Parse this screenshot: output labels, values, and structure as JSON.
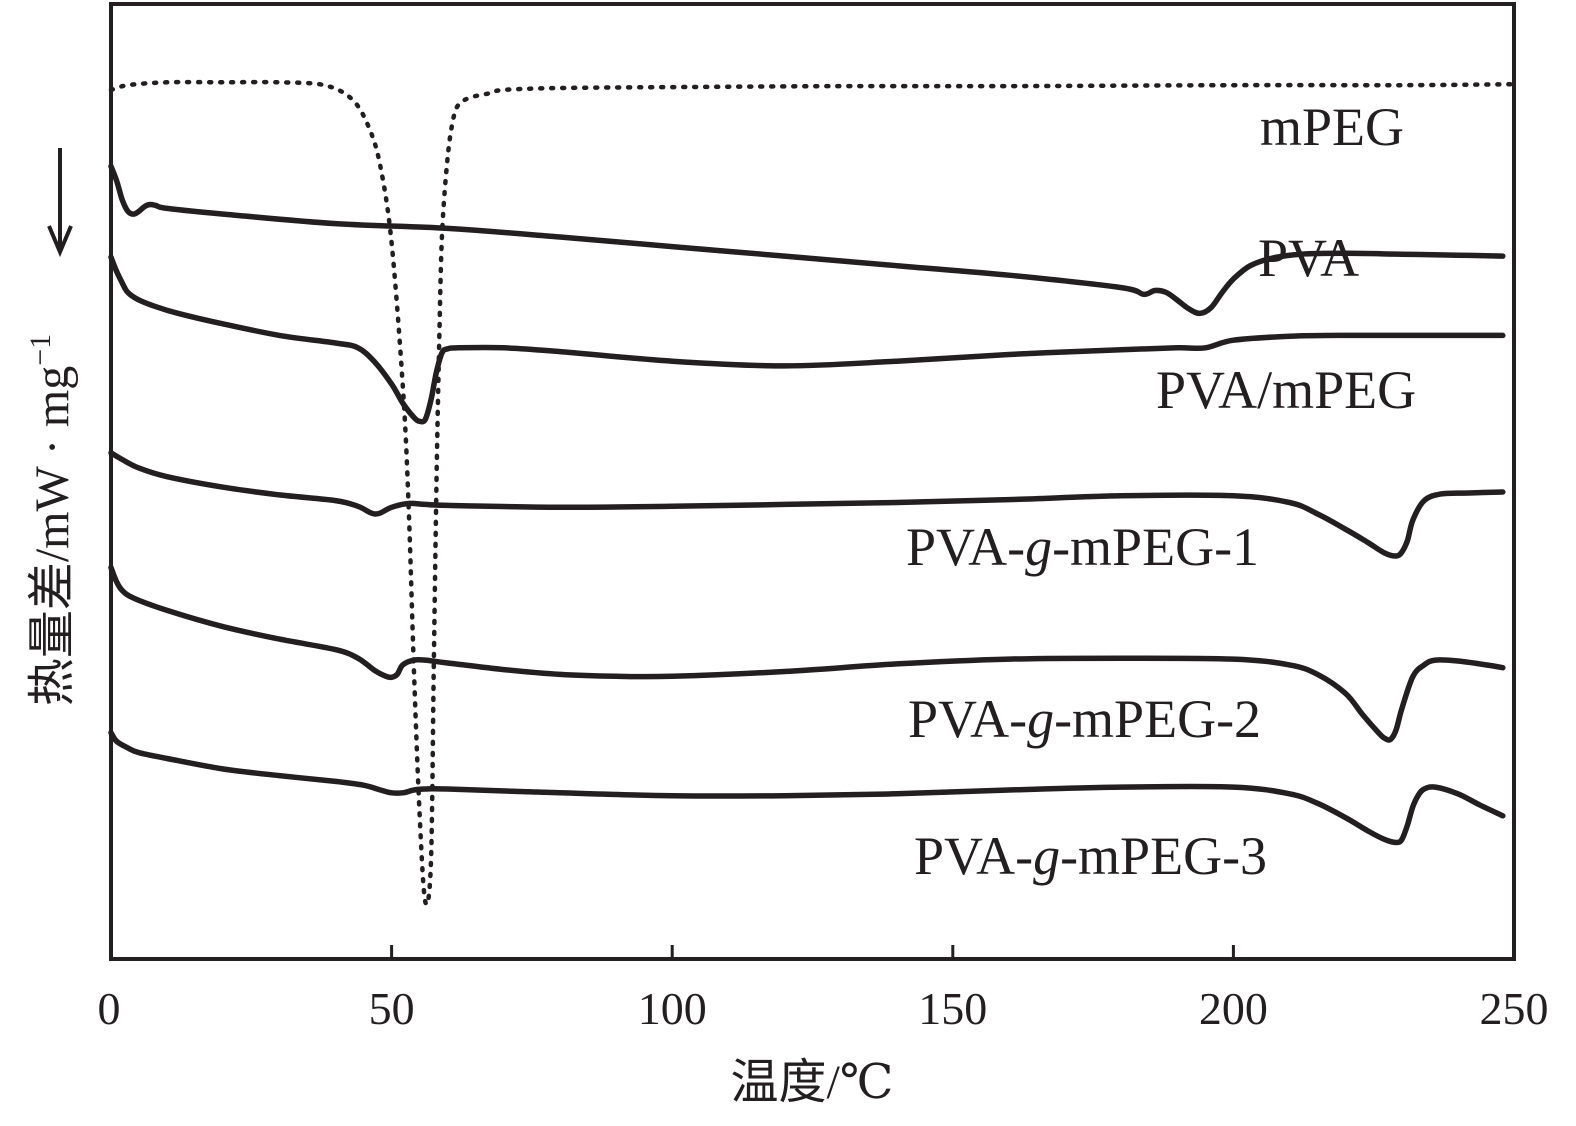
{
  "chart_data": {
    "type": "line",
    "title": "",
    "xlabel": "温度/℃",
    "ylabel": "热量差/mW · mg",
    "ylabel_superscript": "−1",
    "y_direction_arrow": "down",
    "xlim": [
      0,
      250
    ],
    "ylim": [
      0,
      100
    ],
    "xticks": [
      0,
      50,
      100,
      150,
      200,
      250
    ],
    "xtick_labels": [
      "0",
      "50",
      "100",
      "150",
      "200",
      "250"
    ],
    "grid": false,
    "y_units": "relative heat flow (arbitrary, offset curves)",
    "series": [
      {
        "name": "mPEG",
        "label_parts": [
          {
            "text": "mPEG",
            "italic": false
          }
        ],
        "style": "dotted",
        "x": [
          0,
          3,
          10,
          20,
          30,
          38,
          43,
          46,
          48,
          50,
          52,
          53,
          54,
          55,
          56,
          57,
          57.5,
          58,
          58.5,
          59,
          60,
          61,
          62,
          64,
          67,
          70,
          80,
          100,
          130,
          160,
          200,
          230,
          250
        ],
        "y": [
          91,
          91.5,
          91.8,
          91.8,
          91.8,
          91.5,
          90,
          87,
          83,
          75,
          60,
          48,
          30,
          15,
          6,
          10,
          30,
          50,
          65,
          76,
          84,
          88,
          89.5,
          90.2,
          90.6,
          91,
          91.2,
          91.3,
          91.4,
          91.4,
          91.5,
          91.5,
          91.6
        ]
      },
      {
        "name": "PVA",
        "label_parts": [
          {
            "text": "PVA",
            "italic": false
          }
        ],
        "style": "solid",
        "x": [
          0,
          1,
          2,
          3,
          4,
          5,
          6,
          7,
          8,
          10,
          20,
          40,
          60,
          80,
          100,
          120,
          140,
          160,
          180,
          184,
          186,
          188,
          190,
          192,
          194,
          196,
          198,
          200,
          203,
          207,
          212,
          220,
          230,
          240,
          248
        ],
        "y": [
          83,
          81.5,
          79.5,
          78.3,
          78,
          78.3,
          78.8,
          79,
          78.9,
          78.6,
          78,
          77,
          76.5,
          75.6,
          74.6,
          73.6,
          72.6,
          71.6,
          70.3,
          69.6,
          70,
          69.8,
          69,
          68.1,
          67.6,
          68.2,
          69.8,
          71.2,
          72.6,
          73.4,
          73.8,
          73.9,
          73.8,
          73.7,
          73.6
        ]
      },
      {
        "name": "PVA/mPEG",
        "label_parts": [
          {
            "text": "PVA/mPEG",
            "italic": false
          }
        ],
        "style": "solid",
        "x": [
          0,
          1,
          2,
          3,
          5,
          8,
          12,
          20,
          30,
          40,
          44,
          47,
          50,
          52,
          54,
          55,
          56,
          57,
          58,
          59,
          60,
          62,
          70,
          80,
          100,
          120,
          140,
          160,
          180,
          190,
          195,
          200,
          210,
          220,
          230,
          240,
          248
        ],
        "y": [
          73.5,
          72,
          70.8,
          69.8,
          69,
          68.3,
          67.6,
          66.5,
          65.3,
          64.5,
          64,
          62.5,
          60.2,
          58.2,
          56.7,
          56.3,
          56.5,
          58.5,
          61.5,
          63.5,
          63.9,
          64,
          64,
          63.6,
          62.6,
          62.1,
          62.6,
          63.3,
          63.8,
          64,
          64,
          64.8,
          65.2,
          65.3,
          65.3,
          65.3,
          65.3
        ]
      },
      {
        "name": "PVA-g-mPEG-1",
        "label_parts": [
          {
            "text": "PVA-",
            "italic": false
          },
          {
            "text": "g",
            "italic": true
          },
          {
            "text": "-mPEG-1",
            "italic": false
          }
        ],
        "style": "solid",
        "x": [
          0,
          2,
          5,
          10,
          20,
          30,
          40,
          44,
          46,
          47,
          48,
          50,
          53,
          56,
          60,
          80,
          100,
          120,
          140,
          160,
          180,
          200,
          210,
          215,
          220,
          224,
          227,
          229,
          230,
          231,
          232,
          234,
          237,
          242,
          248
        ],
        "y": [
          53,
          52.3,
          51.4,
          50.5,
          49.4,
          48.6,
          48,
          47.4,
          46.8,
          46.6,
          46.7,
          47.3,
          47.7,
          47.6,
          47.5,
          47.3,
          47.4,
          47.6,
          47.8,
          48.1,
          48.5,
          48.5,
          47.8,
          46.6,
          45,
          43.6,
          42.5,
          42.2,
          42.6,
          43.8,
          46,
          48,
          48.7,
          48.8,
          48.9
        ]
      },
      {
        "name": "PVA-g-mPEG-2",
        "label_parts": [
          {
            "text": "PVA-",
            "italic": false
          },
          {
            "text": "g",
            "italic": true
          },
          {
            "text": "-mPEG-2",
            "italic": false
          }
        ],
        "style": "solid",
        "x": [
          0,
          1,
          2,
          4,
          10,
          20,
          30,
          40,
          44,
          47,
          49,
          50,
          51,
          52,
          54,
          56,
          60,
          70,
          80,
          90,
          100,
          120,
          140,
          160,
          180,
          200,
          210,
          215,
          220,
          223,
          226,
          227,
          228,
          229,
          230,
          232,
          234,
          236,
          240,
          245,
          248
        ],
        "y": [
          41,
          39.5,
          38.6,
          37.8,
          36.5,
          34.8,
          33.5,
          32.4,
          31.5,
          30.2,
          29.6,
          29.5,
          29.8,
          30.8,
          31.3,
          31.3,
          31,
          30.3,
          29.8,
          29.6,
          29.6,
          30.1,
          30.9,
          31.4,
          31.5,
          31.4,
          30.8,
          29.8,
          27.8,
          25.6,
          23.6,
          23.1,
          23,
          24,
          26.2,
          29.6,
          30.8,
          31.3,
          31.2,
          30.8,
          30.5
        ]
      },
      {
        "name": "PVA-g-mPEG-3",
        "label_parts": [
          {
            "text": "PVA-",
            "italic": false
          },
          {
            "text": "g",
            "italic": true
          },
          {
            "text": "-mPEG-3",
            "italic": false
          }
        ],
        "style": "solid",
        "x": [
          0,
          1,
          3,
          5,
          10,
          20,
          30,
          40,
          45,
          48,
          50,
          52,
          54,
          56,
          60,
          80,
          100,
          120,
          140,
          160,
          180,
          200,
          210,
          215,
          220,
          224,
          227,
          229,
          230,
          231,
          232,
          233,
          234,
          236,
          240,
          244,
          248
        ],
        "y": [
          23.7,
          22.8,
          22.1,
          21.6,
          21,
          19.9,
          19.2,
          18.6,
          18.2,
          17.7,
          17.4,
          17.4,
          17.7,
          17.8,
          17.8,
          17.4,
          17.1,
          17.1,
          17.3,
          17.7,
          18,
          18,
          17.3,
          16.3,
          14.8,
          13.4,
          12.5,
          12.2,
          12.5,
          14,
          16,
          17.2,
          17.8,
          18,
          17.3,
          16.1,
          15
        ]
      }
    ]
  },
  "series_label_positions_note": "labels are placed to the right of each curve as in the original figure"
}
